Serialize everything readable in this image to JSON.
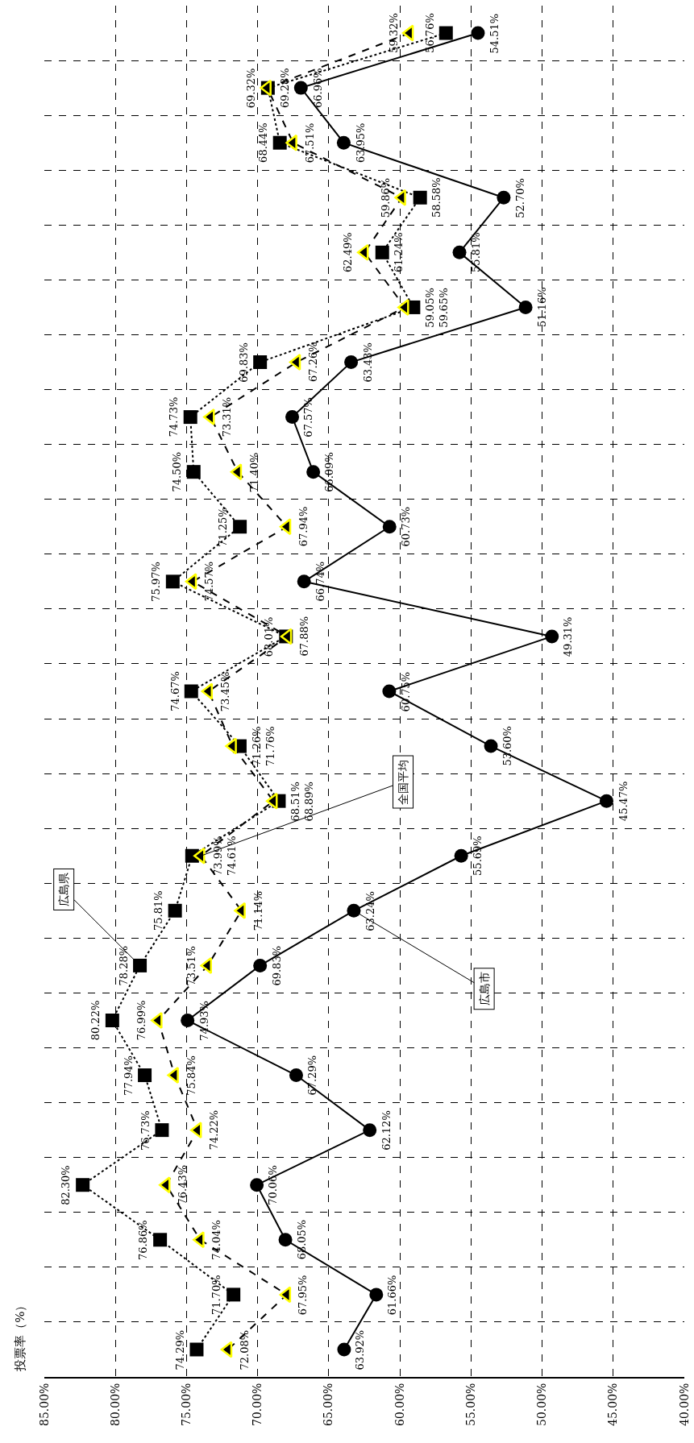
{
  "chart_data": {
    "type": "line",
    "orientation": "horizontal",
    "ylabel": "投票率（%）",
    "categories": [
      null,
      null,
      null,
      null,
      null,
      null,
      null,
      null,
      null,
      null,
      null,
      null,
      null,
      null,
      null,
      null,
      null,
      null,
      null,
      null,
      null,
      null,
      null,
      null,
      null
    ],
    "xlim": [
      85,
      40
    ],
    "xticks": [
      {
        "value": 85,
        "label": "85.00%"
      },
      {
        "value": 80,
        "label": "80.00%"
      },
      {
        "value": 75,
        "label": "75.00%"
      },
      {
        "value": 70,
        "label": "70.00%"
      },
      {
        "value": 65,
        "label": "65.00%"
      },
      {
        "value": 60,
        "label": "60.00%"
      },
      {
        "value": 55,
        "label": "55.00%"
      },
      {
        "value": 50,
        "label": "50.00%"
      },
      {
        "value": 45,
        "label": "45.00%"
      },
      {
        "value": 40,
        "label": "40.00%"
      }
    ],
    "grid": true,
    "legend": false,
    "tick_labels": "x",
    "series": [
      {
        "name": "広島市",
        "color": "#000000",
        "marker": "circle",
        "line_style": "solid",
        "values": [
          54.51,
          66.96,
          63.95,
          52.7,
          55.81,
          51.16,
          63.43,
          67.57,
          66.09,
          60.73,
          66.74,
          49.31,
          60.75,
          53.6,
          45.47,
          55.69,
          63.24,
          69.83,
          74.93,
          67.29,
          62.12,
          70.06,
          68.05,
          61.66,
          63.92
        ],
        "value_labels": [
          "54.51%",
          "66.96%",
          "63.95%",
          "52.70%",
          "55.81%",
          "51.16%",
          "63.43%",
          "67.57%",
          "66.09%",
          "60.73%",
          "66.74%",
          "49.31%",
          "60.75%",
          "53.60%",
          "45.47%",
          "55.69%",
          "63.24%",
          "69.83%",
          "74.93%",
          "67.29%",
          "62.12%",
          "70.06%",
          "68.05%",
          "61.66%",
          "63.92%"
        ]
      },
      {
        "name": "広島県",
        "color": "#000000",
        "marker": "square",
        "line_style": "dotted",
        "values": [
          56.76,
          69.28,
          68.44,
          58.58,
          61.24,
          59.05,
          69.83,
          74.73,
          74.5,
          71.25,
          75.97,
          68.01,
          74.67,
          71.26,
          68.51,
          74.61,
          75.81,
          78.28,
          80.22,
          77.94,
          76.73,
          82.3,
          76.86,
          71.7,
          74.29
        ],
        "value_labels": [
          "56.76%",
          "69.28%",
          "68.44%",
          "58.58%",
          "61.24%",
          "59.05%",
          "69.83%",
          "74.73%",
          "74.50%",
          "71.25%",
          "75.97%",
          "68.01%",
          "74.67%",
          "71.26%",
          "68.51%",
          "74.61%",
          "75.81%",
          "78.28%",
          "80.22%",
          "77.94%",
          "76.73%",
          "82.30%",
          "76.86%",
          "71.70%",
          "74.29%"
        ]
      },
      {
        "name": "全国平均",
        "color": "#000000",
        "marker": "triangle",
        "line_style": "dashed",
        "values": [
          59.32,
          69.32,
          67.51,
          59.86,
          62.49,
          59.65,
          67.26,
          73.31,
          71.4,
          67.94,
          74.57,
          67.88,
          73.45,
          71.76,
          68.89,
          73.99,
          71.14,
          73.51,
          76.99,
          75.84,
          74.22,
          76.43,
          74.04,
          67.95,
          72.08
        ],
        "value_labels": [
          "59.32%",
          "69.32%",
          "67.51%",
          "59.86%",
          "62.49%",
          "59.65%",
          "67.26%",
          "73.31%",
          "71.40%",
          "67.94%",
          "74.57%",
          "67.88%",
          "73.45%",
          "71.76%",
          "68.89%",
          "73.99%",
          "71.14%",
          "73.51%",
          "76.99%",
          "75.84%",
          "74.22%",
          "76.43%",
          "74.04%",
          "67.95%",
          "72.08%"
        ]
      }
    ]
  }
}
